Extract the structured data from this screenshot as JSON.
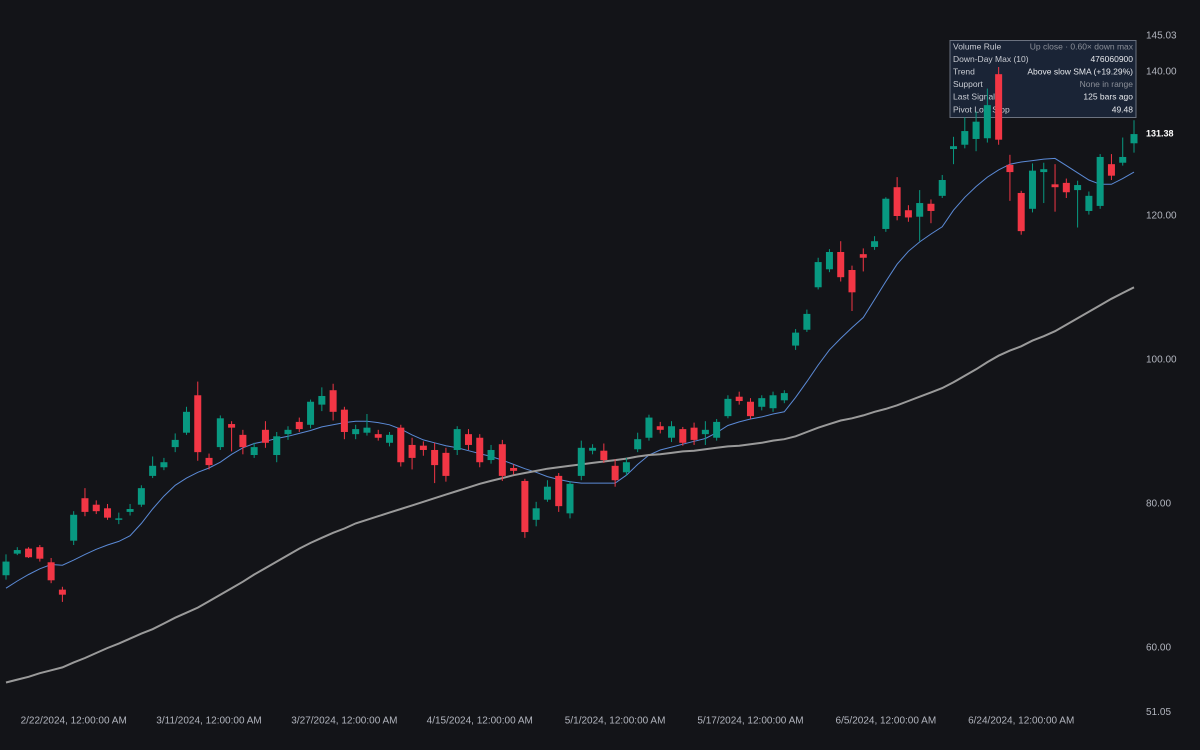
{
  "chart_data": {
    "type": "candlestick",
    "categories": [
      null,
      null,
      null,
      null,
      null,
      null,
      "2/22/2024, 12:00:00 AM",
      null,
      null,
      null,
      null,
      null,
      null,
      null,
      null,
      null,
      null,
      null,
      "3/11/2024, 12:00:00 AM",
      null,
      null,
      null,
      null,
      null,
      null,
      null,
      null,
      null,
      null,
      null,
      "3/27/2024, 12:00:00 AM",
      null,
      null,
      null,
      null,
      null,
      null,
      null,
      null,
      null,
      null,
      null,
      "4/15/2024, 12:00:00 AM",
      null,
      null,
      null,
      null,
      null,
      null,
      null,
      null,
      null,
      null,
      null,
      "5/1/2024, 12:00:00 AM",
      null,
      null,
      null,
      null,
      null,
      null,
      null,
      null,
      null,
      null,
      null,
      "5/17/2024, 12:00:00 AM",
      null,
      null,
      null,
      null,
      null,
      null,
      null,
      null,
      null,
      null,
      null,
      "6/5/2024, 12:00:00 AM",
      null,
      null,
      null,
      null,
      null,
      null,
      null,
      null,
      null,
      null,
      null,
      "6/24/2024, 12:00:00 AM",
      null,
      null,
      null,
      null,
      null,
      null,
      null,
      null,
      null,
      null
    ],
    "ohlc": {
      "open": [
        70.1,
        73.1,
        73.8,
        74.0,
        71.9,
        68.1,
        74.9,
        80.8,
        79.9,
        79.4,
        77.8,
        78.9,
        79.9,
        83.9,
        85.1,
        87.9,
        89.9,
        95.1,
        86.4,
        87.9,
        91.1,
        89.6,
        86.8,
        90.3,
        86.8,
        89.7,
        91.4,
        91.0,
        93.8,
        95.8,
        93.1,
        89.7,
        89.9,
        89.7,
        88.5,
        90.6,
        88.2,
        88.1,
        87.5,
        87.1,
        87.5,
        89.7,
        89.2,
        86.1,
        88.3,
        85.0,
        83.2,
        77.8,
        80.6,
        83.9,
        78.7,
        83.9,
        87.4,
        87.4,
        85.3,
        84.4,
        87.6,
        89.2,
        90.8,
        89.2,
        90.4,
        90.6,
        89.7,
        89.2,
        92.2,
        94.9,
        94.2,
        93.5,
        93.3,
        94.4,
        102.0,
        104.2,
        110.1,
        112.6,
        115.0,
        112.5,
        114.7,
        115.7,
        118.2,
        124.0,
        120.8,
        119.9,
        121.7,
        122.8,
        129.3,
        129.9,
        130.7,
        130.8,
        139.7,
        127.1,
        123.2,
        121.0,
        126.1,
        124.4,
        124.6,
        123.6,
        120.7,
        121.4,
        127.2,
        127.4,
        130.1
      ],
      "high": [
        73.0,
        74.0,
        74.0,
        74.3,
        72.5,
        68.5,
        79.0,
        82.2,
        80.5,
        80.0,
        78.8,
        80.0,
        82.6,
        86.6,
        86.4,
        89.8,
        93.5,
        97.0,
        87.0,
        92.3,
        91.5,
        90.3,
        88.5,
        91.5,
        90.0,
        90.8,
        92.0,
        94.5,
        96.2,
        96.7,
        93.5,
        91.0,
        92.5,
        90.3,
        90.0,
        91.0,
        89.2,
        88.7,
        88.5,
        87.8,
        90.8,
        90.4,
        89.7,
        88.2,
        88.9,
        85.5,
        83.5,
        80.3,
        83.3,
        84.3,
        83.2,
        88.8,
        88.3,
        88.4,
        86.2,
        86.4,
        89.9,
        92.4,
        91.4,
        91.5,
        90.7,
        91.3,
        91.5,
        91.8,
        95.1,
        95.6,
        94.7,
        95.1,
        95.6,
        95.8,
        104.3,
        107.0,
        114.2,
        115.4,
        116.5,
        113.1,
        115.5,
        117.2,
        122.6,
        125.4,
        121.5,
        123.6,
        122.3,
        125.7,
        131.0,
        133.7,
        134.5,
        137.7,
        140.7,
        128.5,
        123.5,
        127.3,
        127.4,
        127.2,
        125.2,
        124.9,
        123.4,
        128.6,
        128.6,
        130.9,
        133.3
      ],
      "low": [
        69.5,
        72.9,
        72.5,
        72.0,
        69.0,
        66.4,
        74.3,
        78.3,
        78.6,
        77.8,
        77.2,
        78.4,
        79.6,
        83.6,
        84.7,
        87.2,
        89.6,
        86.0,
        84.8,
        87.5,
        87.3,
        86.9,
        86.4,
        87.8,
        85.8,
        88.9,
        90.0,
        90.5,
        92.9,
        91.6,
        89.0,
        89.0,
        89.5,
        88.8,
        88.0,
        85.2,
        84.8,
        86.7,
        82.9,
        83.1,
        86.8,
        87.5,
        85.1,
        85.6,
        83.2,
        84.1,
        75.3,
        76.9,
        80.3,
        78.9,
        78.0,
        83.3,
        86.9,
        85.7,
        82.4,
        83.9,
        87.2,
        88.8,
        89.8,
        88.6,
        88.1,
        88.2,
        88.2,
        88.8,
        91.9,
        93.8,
        91.8,
        93.0,
        92.8,
        94.0,
        101.4,
        103.9,
        109.8,
        112.2,
        110.9,
        106.8,
        112.3,
        115.3,
        117.8,
        119.4,
        119.2,
        116.5,
        119.0,
        122.5,
        127.2,
        129.4,
        129.0,
        130.2,
        129.9,
        122.1,
        117.4,
        120.5,
        121.8,
        120.6,
        122.5,
        118.4,
        120.2,
        121.0,
        125.0,
        127.0,
        128.8
      ],
      "close": [
        72.0,
        73.6,
        72.6,
        72.4,
        69.4,
        67.4,
        78.5,
        78.9,
        79.0,
        78.1,
        78.0,
        79.3,
        82.2,
        85.3,
        85.8,
        88.9,
        92.8,
        87.2,
        85.4,
        91.9,
        90.6,
        87.9,
        87.9,
        88.5,
        89.4,
        90.3,
        90.4,
        94.2,
        95.0,
        92.8,
        90.0,
        90.4,
        90.6,
        89.2,
        89.6,
        85.8,
        86.4,
        87.5,
        85.4,
        83.9,
        90.4,
        88.2,
        85.8,
        87.5,
        83.9,
        84.6,
        76.1,
        79.4,
        82.4,
        79.7,
        82.8,
        87.8,
        87.8,
        86.1,
        83.3,
        85.8,
        89.0,
        92.0,
        90.3,
        90.8,
        88.5,
        88.9,
        90.3,
        91.4,
        94.6,
        94.3,
        92.2,
        94.7,
        95.1,
        95.4,
        103.8,
        106.4,
        113.6,
        115.0,
        111.5,
        109.4,
        114.2,
        116.5,
        122.4,
        120.0,
        119.8,
        121.8,
        120.7,
        125.0,
        129.7,
        131.8,
        133.1,
        135.4,
        130.6,
        126.1,
        117.9,
        126.3,
        126.5,
        124.0,
        123.3,
        124.3,
        122.8,
        128.2,
        125.6,
        128.2,
        131.38
      ]
    },
    "up_color": "#089981",
    "down_color": "#f23645",
    "lines": [
      {
        "color": "#5b8ad6",
        "width": 1,
        "values": [
          68.3,
          69.3,
          70.2,
          71.0,
          71.6,
          71.5,
          72.2,
          73.0,
          73.7,
          74.3,
          74.8,
          75.6,
          77.3,
          79.3,
          81.1,
          82.6,
          83.6,
          84.4,
          85.0,
          85.8,
          86.9,
          87.8,
          88.4,
          88.7,
          89.1,
          89.4,
          89.8,
          90.2,
          90.7,
          91.0,
          91.3,
          91.5,
          91.5,
          91.3,
          91.0,
          90.4,
          89.6,
          88.9,
          88.5,
          88.1,
          87.8,
          87.4,
          87.0,
          86.6,
          86.1,
          85.5,
          84.9,
          84.4,
          83.8,
          83.4,
          83.1,
          82.9,
          82.9,
          82.9,
          82.9,
          84.0,
          85.5,
          86.8,
          87.5,
          87.9,
          88.3,
          88.7,
          89.1,
          89.9,
          90.9,
          91.4,
          91.8,
          92.1,
          92.5,
          92.8,
          94.8,
          97.0,
          99.3,
          101.4,
          103.0,
          104.5,
          105.9,
          108.4,
          110.9,
          113.3,
          115.1,
          116.4,
          117.5,
          118.5,
          120.8,
          122.6,
          124.1,
          125.4,
          126.4,
          127.2,
          127.5,
          127.7,
          127.9,
          128.0,
          127.0,
          126.0,
          125.0,
          124.4,
          124.4,
          125.2,
          126.1
        ]
      },
      {
        "color": "#9a9a9a",
        "width": 2,
        "values": [
          55.2,
          55.6,
          56.0,
          56.5,
          56.9,
          57.3,
          58.0,
          58.6,
          59.3,
          60.0,
          60.6,
          61.3,
          62.0,
          62.6,
          63.4,
          64.2,
          64.9,
          65.6,
          66.5,
          67.4,
          68.3,
          69.2,
          70.2,
          71.1,
          72.0,
          72.9,
          73.8,
          74.6,
          75.3,
          76.0,
          76.6,
          77.3,
          77.8,
          78.3,
          78.8,
          79.3,
          79.8,
          80.3,
          80.8,
          81.3,
          81.8,
          82.3,
          82.8,
          83.2,
          83.6,
          84.0,
          84.3,
          84.6,
          84.9,
          85.1,
          85.3,
          85.5,
          85.7,
          85.9,
          86.1,
          86.3,
          86.6,
          86.8,
          86.9,
          87.1,
          87.3,
          87.4,
          87.6,
          87.8,
          88.0,
          88.1,
          88.3,
          88.5,
          88.8,
          89.0,
          89.4,
          90.0,
          90.6,
          91.1,
          91.6,
          91.9,
          92.3,
          92.8,
          93.2,
          93.7,
          94.3,
          94.9,
          95.5,
          96.1,
          96.9,
          97.8,
          98.7,
          99.7,
          100.6,
          101.3,
          101.9,
          102.7,
          103.3,
          104.0,
          104.9,
          105.8,
          106.7,
          107.6,
          108.5,
          109.3,
          110.1
        ]
      }
    ],
    "ylim": [
      51.05,
      145.03
    ],
    "yticks": [
      51.05,
      {
        "value": 60,
        "label": "60.00"
      },
      {
        "value": 80,
        "label": "80.00"
      },
      {
        "value": 100,
        "label": "100.00"
      },
      {
        "value": 120,
        "label": "120.00"
      },
      {
        "value": 140,
        "label": "140.00"
      },
      145.03
    ],
    "grid": false
  },
  "panel": {
    "rows": [
      {
        "label": "Volume Rule",
        "value": "Up close · 0.60× down max",
        "muted": true
      },
      {
        "label": "Down-Day Max (10)",
        "value": "476060900",
        "muted": false
      },
      {
        "label": "Trend",
        "value": "Above slow SMA (+19.29%)",
        "muted": false
      },
      {
        "label": "Support",
        "value": "None in range",
        "muted": true
      },
      {
        "label": "Last Signal",
        "value": "125 bars ago",
        "muted": false
      },
      {
        "label": "Pivot Low Stop",
        "value": "49.48",
        "muted": false
      }
    ]
  }
}
